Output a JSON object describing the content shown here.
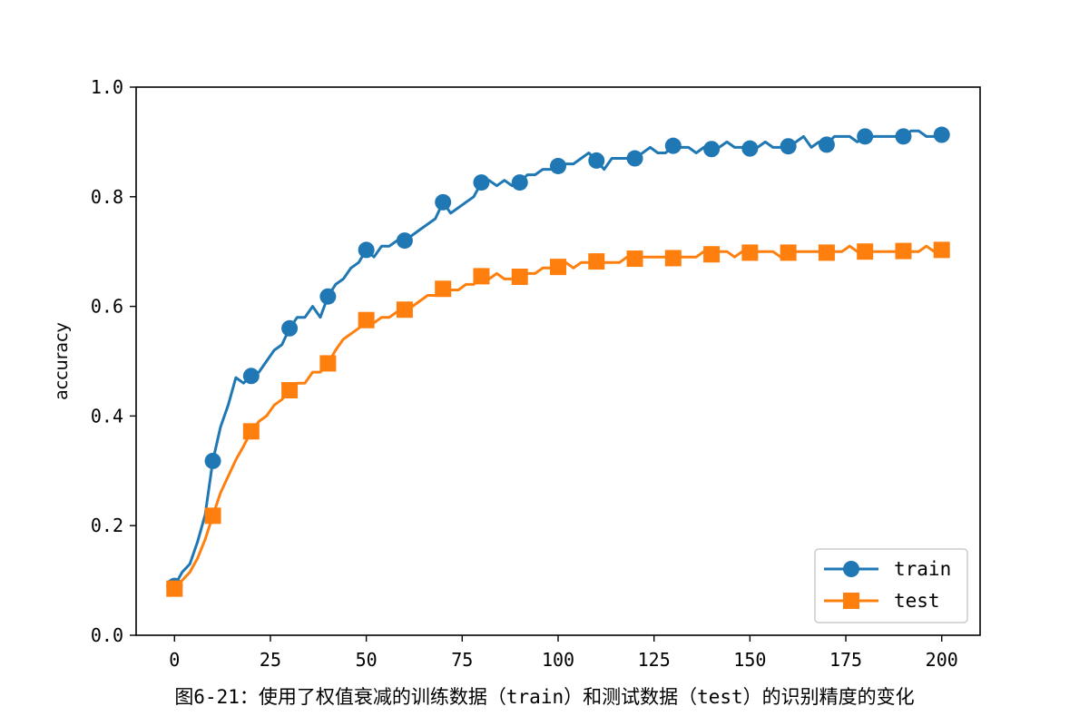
{
  "caption": "图6-21：使用了权值衰减的训练数据（train）和测试数据（test）的识别精度的变化",
  "colors": {
    "train": "#1f77b4",
    "test": "#ff7f0e"
  },
  "chart_data": {
    "type": "line",
    "title": "",
    "xlabel": "",
    "ylabel": "accuracy",
    "xlim": [
      -10,
      210
    ],
    "ylim": [
      0.0,
      1.0
    ],
    "xticks": [
      0,
      25,
      50,
      75,
      100,
      125,
      150,
      175,
      200
    ],
    "yticks": [
      0.0,
      0.2,
      0.4,
      0.6,
      0.8,
      1.0
    ],
    "ytick_labels": [
      "0.0",
      "0.2",
      "0.4",
      "0.6",
      "0.8",
      "1.0"
    ],
    "legend_position": "lower-right",
    "series": [
      {
        "name": "train",
        "marker": "circle",
        "color": "#1f77b4",
        "x": [
          0,
          2,
          4,
          6,
          8,
          10,
          12,
          14,
          16,
          18,
          20,
          22,
          24,
          26,
          28,
          30,
          32,
          34,
          36,
          38,
          40,
          42,
          44,
          46,
          48,
          50,
          52,
          54,
          56,
          58,
          60,
          62,
          64,
          66,
          68,
          70,
          72,
          74,
          76,
          78,
          80,
          82,
          84,
          86,
          88,
          90,
          92,
          94,
          96,
          98,
          100,
          102,
          104,
          106,
          108,
          110,
          112,
          114,
          116,
          118,
          120,
          122,
          124,
          126,
          128,
          130,
          132,
          134,
          136,
          138,
          140,
          142,
          144,
          146,
          148,
          150,
          152,
          154,
          156,
          158,
          160,
          162,
          164,
          166,
          168,
          170,
          172,
          174,
          176,
          178,
          180,
          182,
          184,
          186,
          188,
          190,
          192,
          194,
          196,
          198,
          200
        ],
        "values": [
          0.09,
          0.115,
          0.13,
          0.17,
          0.22,
          0.318,
          0.38,
          0.42,
          0.47,
          0.46,
          0.473,
          0.48,
          0.5,
          0.52,
          0.53,
          0.56,
          0.58,
          0.58,
          0.6,
          0.58,
          0.618,
          0.64,
          0.65,
          0.67,
          0.68,
          0.703,
          0.69,
          0.71,
          0.71,
          0.72,
          0.72,
          0.73,
          0.74,
          0.75,
          0.76,
          0.79,
          0.77,
          0.78,
          0.79,
          0.8,
          0.826,
          0.83,
          0.82,
          0.83,
          0.82,
          0.826,
          0.84,
          0.84,
          0.85,
          0.85,
          0.856,
          0.86,
          0.86,
          0.87,
          0.88,
          0.866,
          0.85,
          0.87,
          0.87,
          0.87,
          0.87,
          0.88,
          0.89,
          0.88,
          0.88,
          0.893,
          0.89,
          0.89,
          0.88,
          0.89,
          0.887,
          0.89,
          0.9,
          0.89,
          0.89,
          0.888,
          0.89,
          0.9,
          0.89,
          0.89,
          0.892,
          0.9,
          0.91,
          0.89,
          0.9,
          0.895,
          0.91,
          0.91,
          0.91,
          0.9,
          0.91,
          0.91,
          0.91,
          0.91,
          0.91,
          0.91,
          0.92,
          0.92,
          0.91,
          0.91,
          0.913
        ],
        "marker_every": 10
      },
      {
        "name": "test",
        "marker": "square",
        "color": "#ff7f0e",
        "x": [
          0,
          2,
          4,
          6,
          8,
          10,
          12,
          14,
          16,
          18,
          20,
          22,
          24,
          26,
          28,
          30,
          32,
          34,
          36,
          38,
          40,
          42,
          44,
          46,
          48,
          50,
          52,
          54,
          56,
          58,
          60,
          62,
          64,
          66,
          68,
          70,
          72,
          74,
          76,
          78,
          80,
          82,
          84,
          86,
          88,
          90,
          92,
          94,
          96,
          98,
          100,
          102,
          104,
          106,
          108,
          110,
          112,
          114,
          116,
          118,
          120,
          122,
          124,
          126,
          128,
          130,
          132,
          134,
          136,
          138,
          140,
          142,
          144,
          146,
          148,
          150,
          152,
          154,
          156,
          158,
          160,
          162,
          164,
          166,
          168,
          170,
          172,
          174,
          176,
          178,
          180,
          182,
          184,
          186,
          188,
          190,
          192,
          194,
          196,
          198,
          200
        ],
        "values": [
          0.085,
          0.1,
          0.115,
          0.14,
          0.175,
          0.218,
          0.26,
          0.29,
          0.32,
          0.345,
          0.372,
          0.39,
          0.4,
          0.42,
          0.43,
          0.447,
          0.46,
          0.46,
          0.48,
          0.48,
          0.496,
          0.52,
          0.54,
          0.55,
          0.56,
          0.575,
          0.57,
          0.58,
          0.58,
          0.59,
          0.594,
          0.6,
          0.61,
          0.62,
          0.62,
          0.632,
          0.63,
          0.63,
          0.64,
          0.64,
          0.655,
          0.65,
          0.66,
          0.65,
          0.65,
          0.654,
          0.66,
          0.66,
          0.67,
          0.67,
          0.672,
          0.68,
          0.67,
          0.68,
          0.68,
          0.682,
          0.68,
          0.68,
          0.68,
          0.69,
          0.687,
          0.69,
          0.69,
          0.69,
          0.69,
          0.688,
          0.69,
          0.69,
          0.69,
          0.7,
          0.695,
          0.7,
          0.7,
          0.69,
          0.7,
          0.698,
          0.7,
          0.7,
          0.7,
          0.69,
          0.698,
          0.7,
          0.7,
          0.7,
          0.7,
          0.698,
          0.7,
          0.7,
          0.71,
          0.7,
          0.7,
          0.7,
          0.7,
          0.7,
          0.7,
          0.701,
          0.7,
          0.7,
          0.71,
          0.7,
          0.703
        ],
        "marker_every": 10
      }
    ]
  }
}
